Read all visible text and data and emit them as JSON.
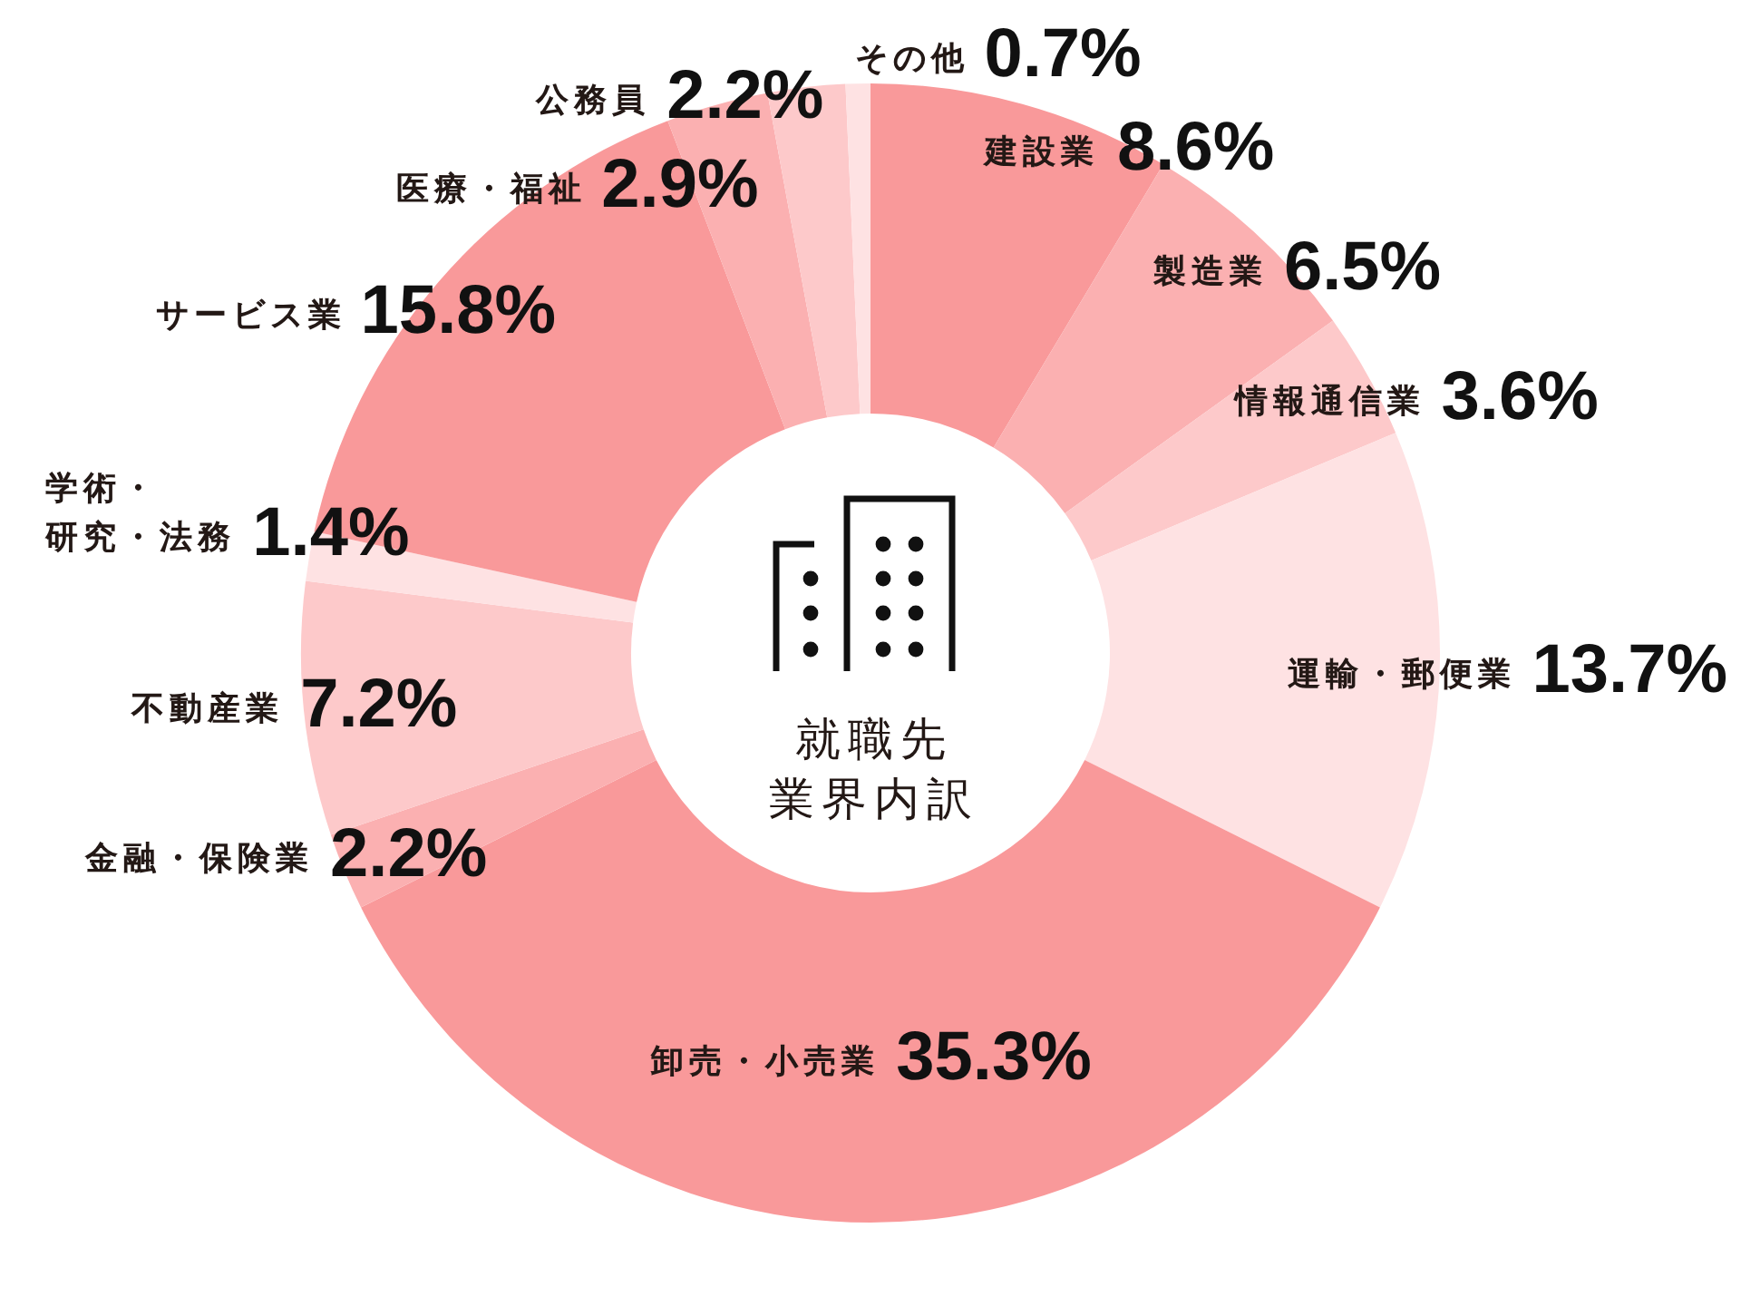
{
  "chart_data": {
    "type": "donut",
    "title": "就職先業界内訳",
    "categories": [
      "建設業",
      "製造業",
      "情報通信業",
      "運輸・郵便業",
      "卸売・小売業",
      "金融・保険業",
      "不動産業",
      "学術・研究・法務",
      "サービス業",
      "医療・福祉",
      "公務員",
      "その他"
    ],
    "values": [
      8.6,
      6.5,
      3.6,
      13.7,
      35.3,
      2.2,
      7.2,
      1.4,
      15.8,
      2.9,
      2.2,
      0.7
    ],
    "value_labels": [
      "8.6%",
      "6.5%",
      "3.6%",
      "13.7%",
      "35.3%",
      "2.2%",
      "7.2%",
      "1.4%",
      "15.8%",
      "2.9%",
      "2.2%",
      "0.7%"
    ],
    "colors": [
      "#f9999a",
      "#fbb0b1",
      "#fdc9ca",
      "#fee2e3",
      "#f9999a",
      "#fbb0b1",
      "#fdc9ca",
      "#fee2e3",
      "#f9999a",
      "#fbb0b1",
      "#fdc9ca",
      "#fee2e3"
    ]
  }
}
